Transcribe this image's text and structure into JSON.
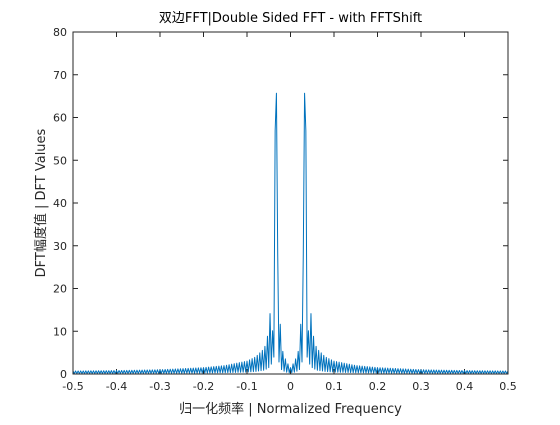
{
  "chart_data": {
    "type": "line",
    "title": "双边FFT|Double Sided FFT - with FFTShift",
    "xlabel": "归一化频率 | Normalized Frequency",
    "ylabel": "DFT幅度值 | DFT Values",
    "xlim": [
      -0.5,
      0.5
    ],
    "ylim": [
      0,
      80
    ],
    "xticks": [
      "-0.5",
      "-0.4",
      "-0.3",
      "-0.2",
      "-0.1",
      "0",
      "0.1",
      "0.2",
      "0.3",
      "0.4",
      "0.5"
    ],
    "yticks": [
      "0",
      "10",
      "20",
      "30",
      "40",
      "50",
      "60",
      "70",
      "80"
    ],
    "grid": false,
    "line_color": "#0072BD",
    "peaks": [
      {
        "x": -0.033,
        "y": 75.5
      },
      {
        "x": 0.033,
        "y": 75.5
      }
    ],
    "series": [
      {
        "x": [
          -0.5,
          -0.4,
          -0.3,
          -0.2,
          -0.15,
          -0.1,
          -0.08,
          -0.06,
          -0.05,
          -0.045,
          -0.04,
          -0.035,
          -0.033,
          -0.03,
          -0.025,
          -0.02,
          -0.01,
          0.0,
          0.01,
          0.02,
          0.025,
          0.03,
          0.033,
          0.035,
          0.04,
          0.045,
          0.05,
          0.06,
          0.08,
          0.1,
          0.15,
          0.2,
          0.3,
          0.4,
          0.5
        ],
        "values": [
          0.7,
          0.8,
          1.0,
          1.5,
          2.0,
          3.0,
          4.0,
          6.0,
          10.0,
          17.0,
          8.0,
          60.0,
          75.5,
          30.0,
          14.0,
          6.0,
          3.0,
          1.5,
          3.0,
          6.0,
          14.0,
          30.0,
          75.5,
          60.0,
          8.0,
          17.0,
          10.0,
          6.0,
          4.0,
          3.0,
          2.0,
          1.5,
          1.0,
          0.8,
          0.7
        ]
      }
    ]
  }
}
